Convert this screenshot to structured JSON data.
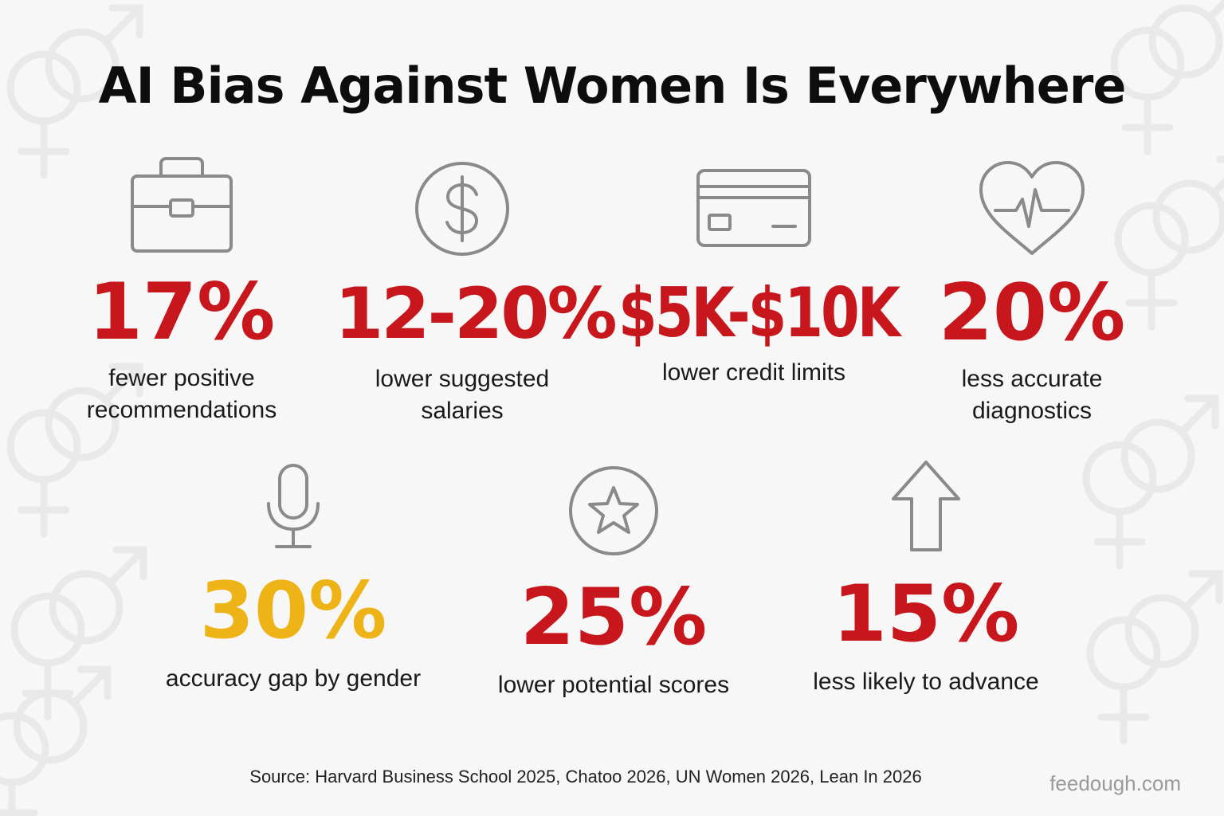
{
  "title": "AI Bias Against Women Is Everywhere",
  "stats_top": [
    {
      "value": "17%",
      "label": "fewer positive\nrecommendations",
      "icon": "briefcase-icon"
    },
    {
      "value": "12-20%",
      "label": "lower suggested\nsalaries",
      "icon": "dollar-coin-icon"
    },
    {
      "value": "$5K-$10K",
      "label": "lower credit limits",
      "icon": "credit-card-icon"
    },
    {
      "value": "20%",
      "label": "less accurate\ndiagnostics",
      "icon": "heartbeat-icon"
    }
  ],
  "stats_bottom": [
    {
      "value": "30%",
      "label": "accuracy gap by gender",
      "icon": "microphone-icon"
    },
    {
      "value": "25%",
      "label": "lower potential scores",
      "icon": "star-badge-icon"
    },
    {
      "value": "15%",
      "label": "less likely to advance",
      "icon": "up-arrow-icon"
    }
  ],
  "source": "Source: Harvard Business School 2025, Chatoo 2026, UN Women 2026, Lean In 2026",
  "watermark": "feedough.com",
  "colors": {
    "red": "#c8161d",
    "gold": "#eeb316",
    "icon_gray": "#8a8a8a",
    "background": "#f7f7f7"
  },
  "background_icons": "gender-symbols-icon"
}
